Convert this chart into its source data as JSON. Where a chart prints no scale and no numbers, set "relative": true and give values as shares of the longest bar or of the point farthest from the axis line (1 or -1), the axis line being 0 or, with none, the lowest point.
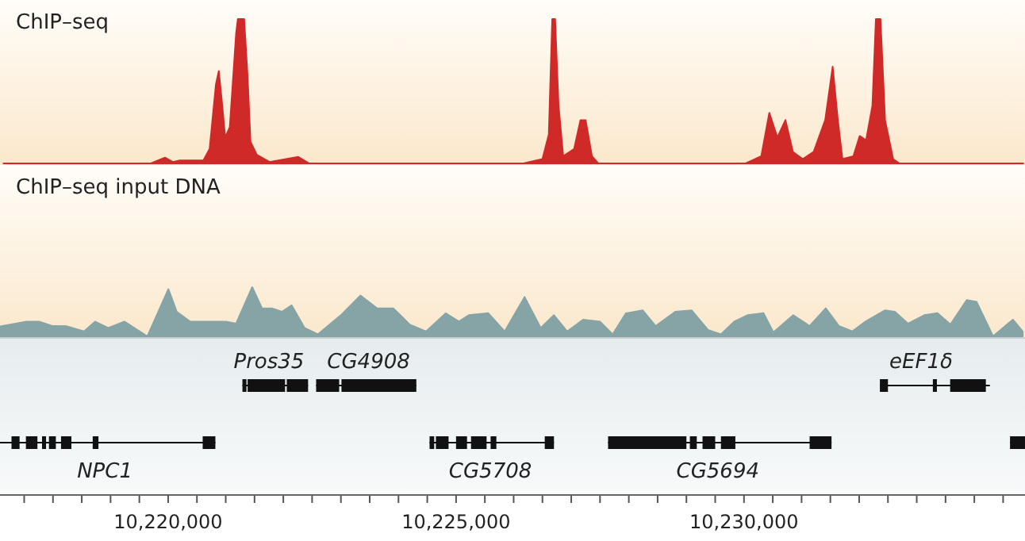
{
  "chart_data": [
    {
      "type": "area",
      "title": "ChIP–seq",
      "relative": true,
      "xlim": [
        10217080,
        10234880
      ],
      "series": [
        {
          "color": "#d02a28",
          "x": [
            10217140,
            10219700,
            10219945,
            10220080,
            10220190,
            10220610,
            10220720,
            10220830,
            10220880,
            10220940,
            10220990,
            10221070,
            10221180,
            10221210,
            10221320,
            10221380,
            10221430,
            10221540,
            10221760,
            10222260,
            10222450,
            10226170,
            10226500,
            10226610,
            10226670,
            10226720,
            10226780,
            10226860,
            10227050,
            10227160,
            10227250,
            10227360,
            10227470,
            10230030,
            10230300,
            10230440,
            10230580,
            10230720,
            10230850,
            10231020,
            10231210,
            10231410,
            10231540,
            10231630,
            10231710,
            10231900,
            10232010,
            10232120,
            10232230,
            10232290,
            10232370,
            10232450,
            10232590,
            10232700,
            10234850
          ],
          "values": [
            0,
            0,
            0.04,
            0.01,
            0.02,
            0.02,
            0.1,
            0.55,
            0.64,
            0.4,
            0.18,
            0.25,
            0.9,
            1,
            1,
            0.6,
            0.15,
            0.06,
            0.01,
            0.045,
            0,
            0,
            0.03,
            0.2,
            1,
            1,
            0.4,
            0.05,
            0.1,
            0.3,
            0.3,
            0.05,
            0,
            0,
            0.05,
            0.35,
            0.18,
            0.3,
            0.08,
            0.03,
            0.08,
            0.3,
            0.67,
            0.3,
            0.03,
            0.05,
            0.19,
            0.16,
            0.4,
            1,
            1,
            0.3,
            0.03,
            0,
            0
          ]
        }
      ]
    },
    {
      "type": "area",
      "title": "ChIP–seq input DNA",
      "relative": true,
      "xlim": [
        10217080,
        10234880
      ],
      "xticks": [
        {
          "value": 10220000,
          "label": "10,220,000"
        },
        {
          "value": 10225000,
          "label": "10,225,000"
        },
        {
          "value": 10230000,
          "label": "10,230,000"
        }
      ],
      "annotations": [
        "Pros35",
        "CG4908",
        "eEF1δ",
        "NPC1",
        "CG5708",
        "CG5694"
      ],
      "series": [
        {
          "color": "#86a4a6",
          "x": [
            10217080,
            10217535,
            10217760,
            10217990,
            10218220,
            10218540,
            10218730,
            10218960,
            10219240,
            10219640,
            10220005,
            10220150,
            10220380,
            10220720,
            10221010,
            10221180,
            10221460,
            10221630,
            10221800,
            10221975,
            10222145,
            10222370,
            10222600,
            10223000,
            10223340,
            10223625,
            10223910,
            10224195,
            10224480,
            10224820,
            10225050,
            10225220,
            10225560,
            10225845,
            10226190,
            10226470,
            10226700,
            10226930,
            10227210,
            10227500,
            10227720,
            10227950,
            10228240,
            10228465,
            10228805,
            10229090,
            10229375,
            10229600,
            10229830,
            10230060,
            10230340,
            10230510,
            10230855,
            10231140,
            10231420,
            10231650,
            10231880,
            10232110,
            10232450,
            10232620,
            10232850,
            10233130,
            10233360,
            10233585,
            10233870,
            10234040,
            10234325,
            10234670,
            10234840
          ],
          "values": [
            0.2,
            0.3,
            0.3,
            0.21,
            0.21,
            0.1,
            0.3,
            0.17,
            0.3,
            0,
            0.96,
            0.5,
            0.3,
            0.3,
            0.3,
            0.26,
            1,
            0.57,
            0.57,
            0.5,
            0.63,
            0.17,
            0.04,
            0.43,
            0.83,
            0.57,
            0.57,
            0.24,
            0.1,
            0.47,
            0.3,
            0.43,
            0.47,
            0.1,
            0.8,
            0.17,
            0.43,
            0.1,
            0.34,
            0.3,
            0.04,
            0.47,
            0.53,
            0.21,
            0.5,
            0.53,
            0.13,
            0.04,
            0.3,
            0.43,
            0.47,
            0.08,
            0.43,
            0.21,
            0.57,
            0.21,
            0.1,
            0.3,
            0.53,
            0.5,
            0.26,
            0.43,
            0.47,
            0.24,
            0.74,
            0.7,
            0,
            0.34,
            0.1
          ]
        }
      ]
    }
  ]
}
